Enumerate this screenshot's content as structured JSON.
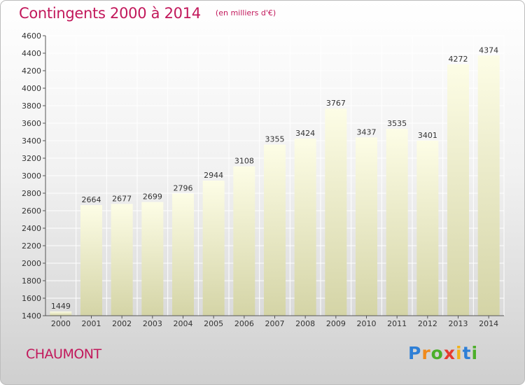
{
  "header": {
    "title": "Contingents 2000 à 2014",
    "subtitle": "(en milliers d'€)"
  },
  "footer": {
    "commune": "CHAUMONT",
    "logo_letters": [
      "P",
      "r",
      "o",
      "x",
      "i",
      "t",
      "i"
    ],
    "logo_colors": [
      "#2e7fd6",
      "#f08a1c",
      "#4caf2a",
      "#e63b2e",
      "#f2b21a",
      "#2e7fd6",
      "#4caf2a"
    ]
  },
  "chart_data": {
    "type": "bar",
    "categories": [
      "2000",
      "2001",
      "2002",
      "2003",
      "2004",
      "2005",
      "2006",
      "2007",
      "2008",
      "2009",
      "2010",
      "2011",
      "2012",
      "2013",
      "2014"
    ],
    "values": [
      1449,
      2664,
      2677,
      2699,
      2796,
      2944,
      3108,
      3355,
      3424,
      3767,
      3437,
      3535,
      3401,
      4272,
      4374
    ],
    "ylim": [
      1400,
      4600
    ],
    "yticks": [
      1400,
      1600,
      1800,
      2000,
      2200,
      2400,
      2600,
      2800,
      3000,
      3200,
      3400,
      3600,
      3800,
      4000,
      4200,
      4400,
      4600
    ],
    "grid": true,
    "bar_color_top": "#fdfde6",
    "bar_color_bottom": "#d4d4a6"
  }
}
